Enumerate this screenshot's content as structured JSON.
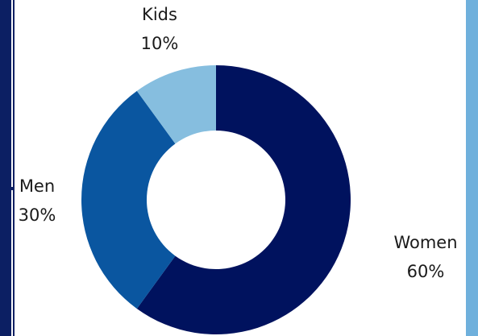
{
  "chart_data": {
    "type": "pie",
    "variant": "donut",
    "categories": [
      "Women",
      "Men",
      "Kids"
    ],
    "values": [
      60,
      30,
      10
    ],
    "labels": [
      "60%",
      "30%",
      "10%"
    ],
    "colors": [
      "#00125e",
      "#0a56a0",
      "#86bedf"
    ],
    "start_angle_deg": 0,
    "direction": "clockwise",
    "title": "",
    "legend": "none"
  },
  "frame": {
    "left_color": "#0c1f63",
    "right_color": "#6fb0dc"
  }
}
